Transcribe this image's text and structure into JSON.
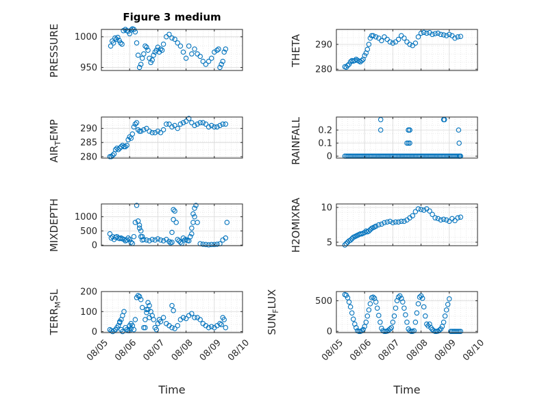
{
  "figure": {
    "background": "#ffffff",
    "marker_color": "#0072bd",
    "axis_color": "#262626",
    "grid_color": "#dcdcdc"
  },
  "chart_data": [
    {
      "type": "scatter",
      "title": "Figure 3 medium",
      "xlabel": "",
      "ylabel": "PRESSURE",
      "xlim": [
        0,
        5
      ],
      "ylim": [
        945,
        1012
      ],
      "yticks": [
        950,
        1000
      ],
      "ytick_labels": [
        "950",
        "1000"
      ],
      "x": [
        0.33,
        0.38,
        0.43,
        0.48,
        0.53,
        0.58,
        0.63,
        0.68,
        0.73,
        0.78,
        0.85,
        0.9,
        0.95,
        1.0,
        1.05,
        1.1,
        1.15,
        1.2,
        1.25,
        1.3,
        1.35,
        1.4,
        1.45,
        1.5,
        1.55,
        1.6,
        1.65,
        1.7,
        1.75,
        1.8,
        1.85,
        1.9,
        1.95,
        2.0,
        2.05,
        2.1,
        2.15,
        2.2,
        2.3,
        2.4,
        2.5,
        2.6,
        2.7,
        2.8,
        2.9,
        3.0,
        3.1,
        3.2,
        3.3,
        3.4,
        3.5,
        3.6,
        3.7,
        3.8,
        3.9,
        4.0,
        4.1,
        4.15,
        4.2,
        4.25,
        4.3,
        4.35,
        4.4
      ],
      "y": [
        985,
        993,
        990,
        998,
        996,
        999,
        994,
        990,
        988,
        1010,
        1012,
        1010,
        1009,
        1005,
        1011,
        1013,
        1012,
        1008,
        990,
        970,
        950,
        955,
        965,
        972,
        985,
        983,
        978,
        965,
        958,
        962,
        970,
        975,
        978,
        983,
        975,
        980,
        978,
        988,
        1000,
        1004,
        998,
        996,
        990,
        985,
        975,
        965,
        985,
        972,
        980,
        972,
        968,
        960,
        955,
        960,
        965,
        975,
        978,
        980,
        950,
        955,
        960,
        975,
        980
      ]
    },
    {
      "type": "scatter",
      "title": "",
      "xlabel": "",
      "ylabel": "THETA",
      "xlim": [
        0,
        5
      ],
      "ylim": [
        279.5,
        296
      ],
      "yticks": [
        280,
        290
      ],
      "ytick_labels": [
        "280",
        "290"
      ],
      "x": [
        0.3,
        0.35,
        0.4,
        0.45,
        0.5,
        0.55,
        0.6,
        0.65,
        0.7,
        0.75,
        0.8,
        0.85,
        0.9,
        0.95,
        1.0,
        1.05,
        1.1,
        1.15,
        1.2,
        1.25,
        1.3,
        1.4,
        1.5,
        1.6,
        1.7,
        1.8,
        1.9,
        2.0,
        2.1,
        2.2,
        2.3,
        2.4,
        2.5,
        2.6,
        2.7,
        2.8,
        2.9,
        3.0,
        3.1,
        3.2,
        3.3,
        3.4,
        3.5,
        3.6,
        3.7,
        3.8,
        3.9,
        4.0,
        4.1,
        4.2,
        4.3,
        4.4
      ],
      "y": [
        281,
        280.8,
        281.5,
        282,
        283,
        283.5,
        283.3,
        283.5,
        284,
        283.6,
        283.3,
        283,
        283.5,
        284,
        285.5,
        286.5,
        288,
        290,
        292.5,
        293.5,
        293.5,
        293,
        292.5,
        291.5,
        293,
        292,
        291,
        290.5,
        291,
        292,
        293.5,
        292.5,
        291,
        290,
        289.5,
        290.5,
        293,
        294.5,
        294.8,
        294.5,
        294.7,
        294,
        294.3,
        294.5,
        294,
        293.8,
        293.5,
        294,
        293.5,
        292.5,
        293,
        293.2
      ]
    },
    {
      "type": "scatter",
      "title": "",
      "xlabel": "",
      "ylabel": "AIR_TEMP",
      "xlim": [
        0,
        5
      ],
      "ylim": [
        279.5,
        294
      ],
      "yticks": [
        280,
        285,
        290
      ],
      "ytick_labels": [
        "280",
        "285",
        "290"
      ],
      "x": [
        0.3,
        0.35,
        0.4,
        0.45,
        0.5,
        0.55,
        0.6,
        0.65,
        0.7,
        0.75,
        0.8,
        0.85,
        0.9,
        0.95,
        1.0,
        1.05,
        1.1,
        1.15,
        1.2,
        1.25,
        1.3,
        1.35,
        1.4,
        1.5,
        1.6,
        1.7,
        1.8,
        1.9,
        2.0,
        2.1,
        2.2,
        2.3,
        2.4,
        2.5,
        2.6,
        2.7,
        2.8,
        2.9,
        3.0,
        3.1,
        3.2,
        3.3,
        3.4,
        3.5,
        3.6,
        3.7,
        3.8,
        3.9,
        4.0,
        4.1,
        4.2,
        4.3,
        4.4
      ],
      "y": [
        280,
        280,
        280.5,
        281,
        282.5,
        283,
        282.5,
        283,
        283.5,
        284,
        283.5,
        283.5,
        284,
        286,
        287,
        286.5,
        288,
        290.5,
        291.5,
        292,
        289.5,
        289,
        289,
        289.5,
        290,
        289,
        288.5,
        288.5,
        289,
        288.5,
        289.5,
        291.5,
        291.5,
        290.5,
        291,
        290,
        291.5,
        292,
        292.5,
        293.5,
        292,
        291,
        291.5,
        292,
        292,
        291.5,
        290.5,
        291,
        290.5,
        290.5,
        291,
        291.5,
        291.5
      ]
    },
    {
      "type": "scatter",
      "title": "",
      "xlabel": "",
      "ylabel": "RAINFALL",
      "xlim": [
        0,
        5
      ],
      "ylim": [
        -0.015,
        0.3
      ],
      "yticks": [
        0,
        0.1,
        0.2
      ],
      "ytick_labels": [
        "0",
        "0.1",
        "0.2"
      ],
      "x": [
        0.3,
        0.35,
        0.4,
        0.45,
        0.5,
        0.55,
        0.6,
        0.65,
        0.7,
        0.75,
        0.8,
        0.85,
        0.9,
        0.95,
        1.0,
        1.05,
        1.1,
        1.15,
        1.2,
        1.25,
        1.3,
        1.35,
        1.4,
        1.45,
        1.5,
        1.55,
        1.6,
        1.65,
        1.7,
        1.75,
        1.8,
        1.85,
        1.9,
        1.95,
        2.0,
        2.05,
        2.1,
        2.15,
        2.2,
        2.25,
        2.3,
        2.35,
        2.4,
        2.45,
        2.5,
        2.55,
        2.6,
        2.65,
        2.7,
        2.75,
        2.8,
        2.85,
        2.9,
        2.95,
        3.0,
        3.05,
        3.1,
        3.15,
        3.2,
        3.25,
        3.3,
        3.35,
        3.4,
        3.45,
        3.5,
        3.55,
        3.6,
        3.65,
        3.7,
        3.75,
        3.8,
        3.85,
        3.9,
        3.95,
        4.0,
        4.05,
        4.1,
        4.15,
        4.2,
        4.25,
        4.3,
        4.35,
        4.4,
        1.57,
        1.57,
        2.5,
        2.55,
        2.55,
        2.55,
        2.6,
        2.6,
        2.6,
        3.8,
        3.83,
        4.33,
        4.35,
        4.37
      ],
      "y": [
        0,
        0,
        0,
        0,
        0,
        0,
        0,
        0,
        0,
        0,
        0,
        0,
        0,
        0,
        0,
        0,
        0,
        0,
        0,
        0,
        0,
        0,
        0,
        0,
        0,
        0,
        0,
        0,
        0,
        0,
        0,
        0,
        0,
        0,
        0,
        0,
        0,
        0,
        0,
        0,
        0,
        0,
        0,
        0,
        0,
        0,
        0,
        0,
        0,
        0,
        0,
        0,
        0,
        0,
        0,
        0,
        0,
        0,
        0,
        0,
        0,
        0,
        0,
        0,
        0,
        0,
        0,
        0,
        0,
        0,
        0,
        0,
        0,
        0,
        0,
        0,
        0,
        0,
        0,
        0,
        0,
        0,
        0,
        0.2,
        0.28,
        0.1,
        0.2,
        0.2,
        0.1,
        0.1,
        0.2,
        0.2,
        0.28,
        0.28,
        0.2,
        0.1,
        0
      ]
    },
    {
      "type": "scatter",
      "title": "",
      "xlabel": "",
      "ylabel": "MIXDEPTH",
      "xlim": [
        0,
        5
      ],
      "ylim": [
        -20,
        1450
      ],
      "yticks": [
        0,
        500,
        1000
      ],
      "ytick_labels": [
        "0",
        "500",
        "1000"
      ],
      "x": [
        0.3,
        0.35,
        0.4,
        0.45,
        0.5,
        0.55,
        0.6,
        0.65,
        0.7,
        0.75,
        0.8,
        0.85,
        0.9,
        0.95,
        1.0,
        1.05,
        1.1,
        1.15,
        1.2,
        1.25,
        1.3,
        1.35,
        1.4,
        1.45,
        1.5,
        1.6,
        1.7,
        1.8,
        1.9,
        2.0,
        2.1,
        2.2,
        2.3,
        2.4,
        2.45,
        2.5,
        2.55,
        2.6,
        2.65,
        2.7,
        2.75,
        2.8,
        2.85,
        2.9,
        2.95,
        3.0,
        3.05,
        3.1,
        3.15,
        3.2,
        3.25,
        3.3,
        3.35,
        3.4,
        3.5,
        3.6,
        3.7,
        3.8,
        3.9,
        4.0,
        4.1,
        4.2,
        4.3,
        4.4,
        1.35,
        1.4,
        1.45,
        2.5,
        2.55,
        3.2,
        3.25,
        3.3,
        4.45
      ],
      "y": [
        400,
        250,
        300,
        200,
        280,
        300,
        250,
        230,
        250,
        220,
        200,
        150,
        180,
        250,
        200,
        100,
        60,
        300,
        800,
        1400,
        850,
        700,
        300,
        180,
        200,
        180,
        150,
        200,
        180,
        220,
        180,
        150,
        200,
        130,
        80,
        100,
        1250,
        1200,
        800,
        200,
        150,
        100,
        60,
        250,
        180,
        200,
        160,
        150,
        300,
        600,
        1100,
        1300,
        1400,
        800,
        50,
        30,
        20,
        10,
        20,
        20,
        30,
        50,
        180,
        250,
        600,
        500,
        300,
        450,
        900,
        400,
        800,
        1000,
        800
      ]
    },
    {
      "type": "scatter",
      "title": "",
      "xlabel": "",
      "ylabel": "H2OMIXRA",
      "xlim": [
        0,
        5
      ],
      "ylim": [
        4.5,
        10.5
      ],
      "yticks": [
        5,
        10
      ],
      "ytick_labels": [
        "5",
        "10"
      ],
      "x": [
        0.3,
        0.35,
        0.4,
        0.45,
        0.5,
        0.55,
        0.6,
        0.65,
        0.7,
        0.75,
        0.8,
        0.85,
        0.9,
        0.95,
        1.0,
        1.05,
        1.1,
        1.15,
        1.2,
        1.25,
        1.3,
        1.35,
        1.4,
        1.5,
        1.6,
        1.7,
        1.8,
        1.9,
        2.0,
        2.1,
        2.2,
        2.3,
        2.4,
        2.5,
        2.6,
        2.7,
        2.8,
        2.9,
        3.0,
        3.1,
        3.2,
        3.3,
        3.4,
        3.5,
        3.6,
        3.7,
        3.8,
        3.9,
        4.0,
        4.1,
        4.2,
        4.3,
        4.4
      ],
      "y": [
        4.6,
        4.8,
        5,
        5.2,
        5.3,
        5.5,
        5.7,
        5.8,
        5.9,
        6,
        6.1,
        6.2,
        6.2,
        6.3,
        6.4,
        6.6,
        6.5,
        6.6,
        6.8,
        7,
        7.1,
        7.2,
        7.3,
        7.5,
        7.6,
        7.8,
        7.9,
        8,
        7.8,
        7.9,
        7.9,
        8,
        8,
        8.2,
        8.5,
        8.8,
        9.4,
        9.8,
        9.7,
        9.6,
        9.8,
        9.5,
        9,
        8.5,
        8.4,
        8.2,
        8.3,
        8.2,
        8.0,
        8.4,
        8.1,
        8.5,
        8.6
      ]
    },
    {
      "type": "scatter",
      "title": "",
      "xlabel": "Time",
      "ylabel": "TERR_MSL",
      "xlim": [
        0,
        5
      ],
      "ylim": [
        -5,
        200
      ],
      "yticks": [
        0,
        100,
        200
      ],
      "ytick_labels": [
        "0",
        "100",
        "200"
      ],
      "x_tick_labels": [
        "08/05",
        "08/06",
        "08/07",
        "08/08",
        "08/09",
        "08/10"
      ],
      "x": [
        0.3,
        0.35,
        0.4,
        0.45,
        0.5,
        0.55,
        0.6,
        0.65,
        0.7,
        0.75,
        0.8,
        0.85,
        0.9,
        0.95,
        1.0,
        1.05,
        1.1,
        1.15,
        1.2,
        1.25,
        1.3,
        1.35,
        1.4,
        1.45,
        1.5,
        1.55,
        1.6,
        1.65,
        1.7,
        1.75,
        1.8,
        1.85,
        1.9,
        1.95,
        2.0,
        2.05,
        2.1,
        2.2,
        2.3,
        2.4,
        2.5,
        2.6,
        2.7,
        2.8,
        2.9,
        3.0,
        3.1,
        3.2,
        3.3,
        3.4,
        3.5,
        3.6,
        3.7,
        3.8,
        3.9,
        4.0,
        4.1,
        4.2,
        4.25,
        4.3,
        4.35,
        4.4,
        0.65,
        0.7,
        0.75,
        1.0,
        1.05,
        1.55,
        1.6,
        1.65,
        1.7,
        2.5,
        2.55
      ],
      "y": [
        10,
        5,
        0,
        5,
        10,
        20,
        30,
        45,
        60,
        80,
        100,
        20,
        10,
        5,
        30,
        40,
        30,
        10,
        60,
        170,
        180,
        175,
        160,
        120,
        20,
        60,
        110,
        145,
        130,
        100,
        80,
        60,
        20,
        10,
        40,
        60,
        50,
        70,
        40,
        30,
        20,
        15,
        30,
        60,
        70,
        65,
        80,
        90,
        70,
        70,
        60,
        40,
        30,
        20,
        25,
        20,
        30,
        40,
        35,
        70,
        60,
        20,
        50,
        10,
        0,
        5,
        15,
        20,
        95,
        110,
        70,
        130,
        105
      ]
    },
    {
      "type": "scatter",
      "title": "",
      "xlabel": "Time",
      "ylabel": "SUN_FLUX",
      "xlim": [
        0,
        5
      ],
      "ylim": [
        -20,
        650
      ],
      "yticks": [
        0,
        500
      ],
      "ytick_labels": [
        "0",
        "500"
      ],
      "x_tick_labels": [
        "08/05",
        "08/06",
        "08/07",
        "08/08",
        "08/09",
        "08/10"
      ],
      "x": [
        0.3,
        0.35,
        0.4,
        0.45,
        0.5,
        0.55,
        0.6,
        0.65,
        0.7,
        0.75,
        0.8,
        0.85,
        0.9,
        0.95,
        1.0,
        1.05,
        1.1,
        1.15,
        1.2,
        1.25,
        1.3,
        1.35,
        1.4,
        1.45,
        1.5,
        1.55,
        1.6,
        1.65,
        1.7,
        1.75,
        1.8,
        1.85,
        1.9,
        1.95,
        2.0,
        2.05,
        2.1,
        2.15,
        2.2,
        2.25,
        2.3,
        2.35,
        2.4,
        2.45,
        2.5,
        2.55,
        2.6,
        2.65,
        2.7,
        2.75,
        2.8,
        2.85,
        2.9,
        2.95,
        3.0,
        3.05,
        3.1,
        3.15,
        3.2,
        3.25,
        3.3,
        3.35,
        3.4,
        3.45,
        3.5,
        3.55,
        3.6,
        3.65,
        3.7,
        3.75,
        3.8,
        3.85,
        3.9,
        3.95,
        4.0,
        4.05,
        4.1,
        4.15,
        4.2,
        4.25,
        4.3,
        4.35,
        4.4
      ],
      "y": [
        600,
        590,
        550,
        480,
        400,
        300,
        200,
        120,
        60,
        10,
        0,
        0,
        10,
        30,
        80,
        150,
        250,
        350,
        450,
        550,
        560,
        540,
        480,
        380,
        260,
        150,
        50,
        10,
        0,
        0,
        5,
        20,
        40,
        60,
        150,
        250,
        380,
        500,
        560,
        580,
        540,
        480,
        380,
        270,
        150,
        40,
        10,
        0,
        0,
        10,
        150,
        300,
        450,
        560,
        580,
        540,
        400,
        250,
        120,
        90,
        120,
        60,
        30,
        10,
        0,
        0,
        5,
        20,
        40,
        80,
        150,
        250,
        350,
        440,
        530,
        0,
        0,
        0,
        0,
        0,
        0,
        0,
        0
      ]
    }
  ]
}
